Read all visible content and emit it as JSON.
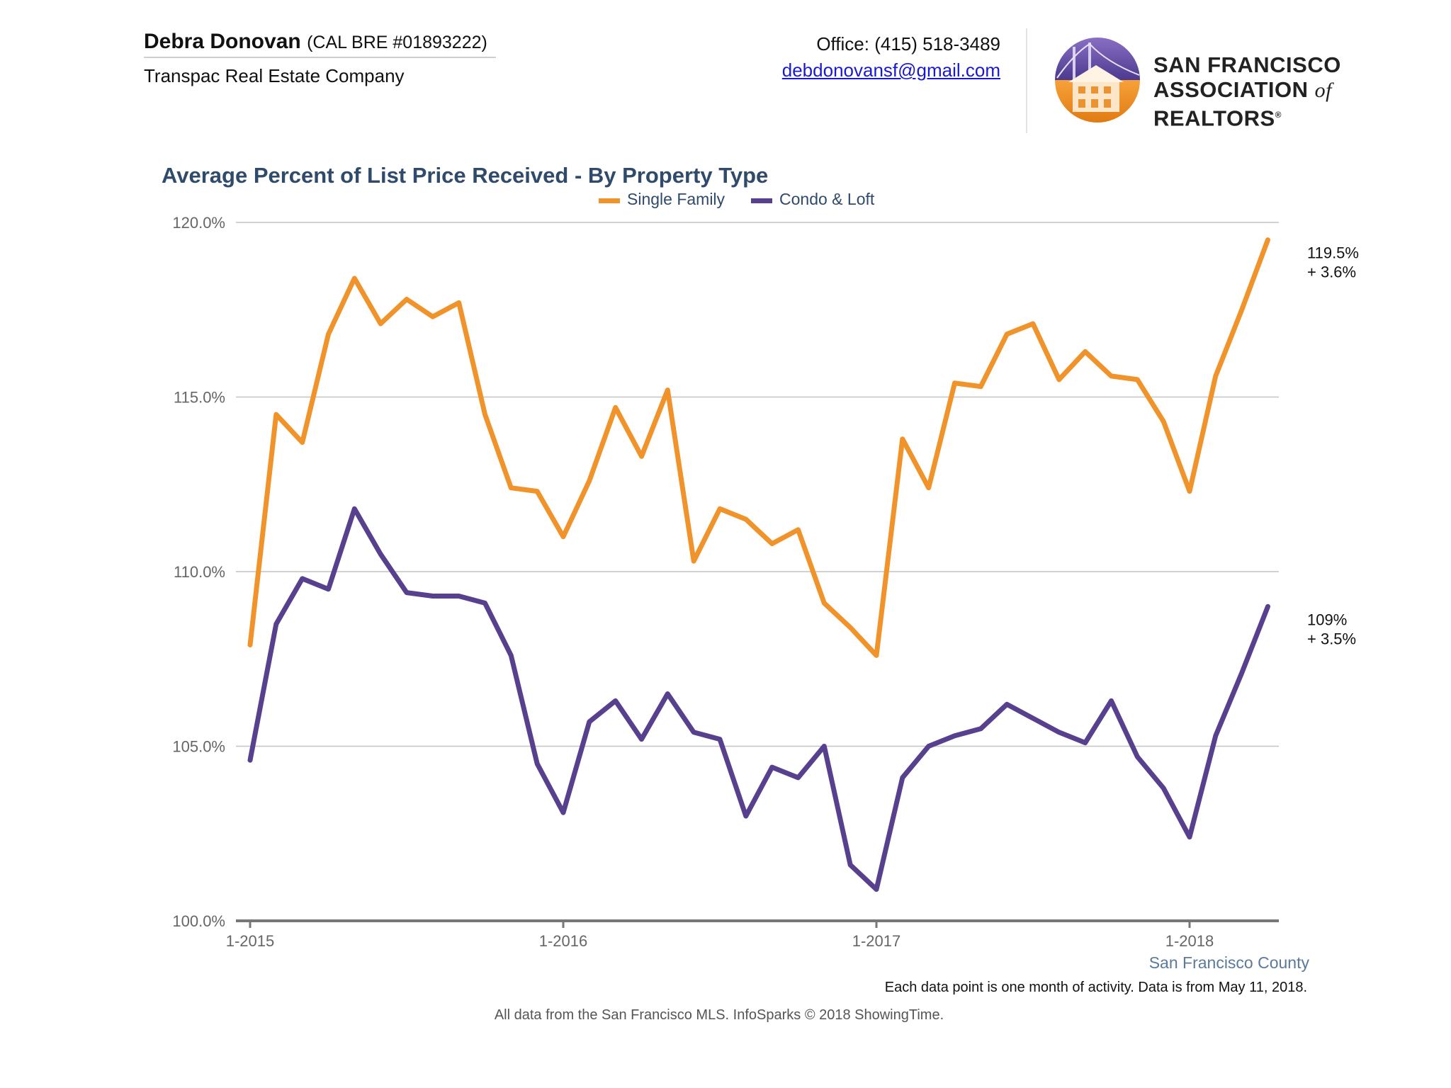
{
  "header": {
    "agent_name": "Debra Donovan",
    "agent_license": "(CAL BRE #01893222)",
    "company": "Transpac Real Estate Company",
    "phone": "Office: (415) 518-3489",
    "email": "debdonovansf@gmail.com",
    "logo_line1": "SAN FRANCISCO",
    "logo_line2a": "ASSOCIATION",
    "logo_of": "of",
    "logo_line2b": "REALTORS",
    "logo_reg": "®"
  },
  "colors": {
    "single_family": "#f0932b",
    "condo_loft": "#57418f",
    "title": "#2f4a6a",
    "grid": "#c4c4c4",
    "axis_text": "#666666",
    "county": "#5a7a9c"
  },
  "chart_data": {
    "type": "line",
    "title": "Average Percent of List Price Received - By Property Type",
    "legend_position": "top-center",
    "grid": true,
    "x_ticks": [
      "1-2015",
      "1-2016",
      "1-2017",
      "1-2018"
    ],
    "x_start": "2015-01",
    "ylim": [
      100,
      120
    ],
    "y_ticks": [
      "100.0%",
      "105.0%",
      "110.0%",
      "115.0%",
      "120.0%"
    ],
    "series": [
      {
        "name": "Single Family",
        "values": [
          107.9,
          114.5,
          113.7,
          116.8,
          118.4,
          117.1,
          117.8,
          117.3,
          117.7,
          114.5,
          112.4,
          112.3,
          111.0,
          112.6,
          114.7,
          113.3,
          115.2,
          110.3,
          111.8,
          111.5,
          110.8,
          111.2,
          109.1,
          108.4,
          107.6,
          113.8,
          112.4,
          115.4,
          115.3,
          116.8,
          117.1,
          115.5,
          116.3,
          115.6,
          115.5,
          114.3,
          112.3,
          115.6,
          117.5,
          119.5
        ],
        "end_label": "119.5%",
        "change_label": "+ 3.6%"
      },
      {
        "name": "Condo & Loft",
        "values": [
          104.6,
          108.5,
          109.8,
          109.5,
          111.8,
          110.5,
          109.4,
          109.3,
          109.3,
          109.1,
          107.6,
          104.5,
          103.1,
          105.7,
          106.3,
          105.2,
          106.5,
          105.4,
          105.2,
          103.0,
          104.4,
          104.1,
          105.0,
          101.6,
          100.9,
          104.1,
          105.0,
          105.3,
          105.5,
          106.2,
          105.8,
          105.4,
          105.1,
          106.3,
          104.7,
          103.8,
          102.4,
          105.3,
          107.1,
          109.0
        ],
        "end_label": "109%",
        "change_label": "+ 3.5%"
      }
    ],
    "region_label": "San Francisco County",
    "note": "Each data point is one month of activity. Data is from May 11, 2018.",
    "footer": "All data from the San Francisco MLS. InfoSparks © 2018 ShowingTime."
  }
}
